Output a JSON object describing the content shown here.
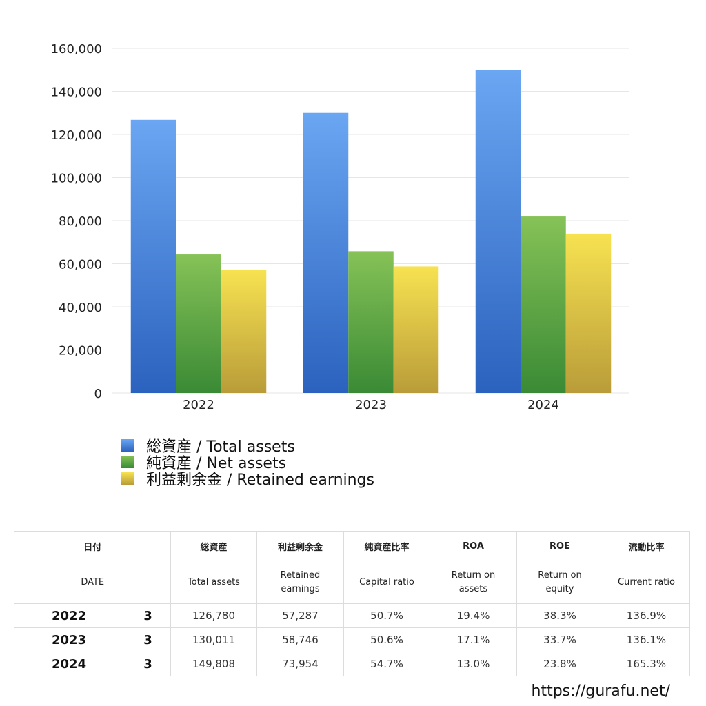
{
  "chart_data": {
    "type": "bar",
    "categories": [
      "2022",
      "2023",
      "2024"
    ],
    "series": [
      {
        "name": "総資産 / Total assets",
        "values": [
          126780,
          130011,
          149808
        ]
      },
      {
        "name": "純資産 / Net assets",
        "values": [
          64300,
          65800,
          81900
        ]
      },
      {
        "name": "利益剰余金 / Retained earnings",
        "values": [
          57287,
          58746,
          73954
        ]
      }
    ],
    "yticks": [
      "0",
      "20,000",
      "40,000",
      "60,000",
      "80,000",
      "100,000",
      "120,000",
      "140,000",
      "160,000"
    ],
    "ylim": [
      0,
      160000
    ],
    "grid": true,
    "legend_position": "bottom-left"
  },
  "colors": {
    "total_assets": [
      "#6aa6f2",
      "#2b62be"
    ],
    "net_assets": [
      "#86c257",
      "#3a8a35"
    ],
    "retained_earnings": [
      "#f7e251",
      "#b99c39"
    ]
  },
  "table": {
    "header_jp": {
      "date": "日付",
      "total_assets": "総資産",
      "retained_earnings": "利益剰余金",
      "capital_ratio": "純資産比率",
      "roa": "ROA",
      "roe": "ROE",
      "current_ratio": "流動比率"
    },
    "header_en": {
      "date": "DATE",
      "total_assets": "Total assets",
      "retained_earnings": "Retained\nearnings",
      "capital_ratio": "Capital ratio",
      "roa": "Return on\nassets",
      "roe": "Return on\nequity",
      "current_ratio": "Current ratio"
    },
    "rows": [
      {
        "year": "2022",
        "month": "3",
        "total_assets": "126,780",
        "retained_earnings": "57,287",
        "capital_ratio": "50.7%",
        "roa": "19.4%",
        "roe": "38.3%",
        "current_ratio": "136.9%"
      },
      {
        "year": "2023",
        "month": "3",
        "total_assets": "130,011",
        "retained_earnings": "58,746",
        "capital_ratio": "50.6%",
        "roa": "17.1%",
        "roe": "33.7%",
        "current_ratio": "136.1%"
      },
      {
        "year": "2024",
        "month": "3",
        "total_assets": "149,808",
        "retained_earnings": "73,954",
        "capital_ratio": "54.7%",
        "roa": "13.0%",
        "roe": "23.8%",
        "current_ratio": "165.3%"
      }
    ]
  },
  "site_url": "https://gurafu.net/"
}
